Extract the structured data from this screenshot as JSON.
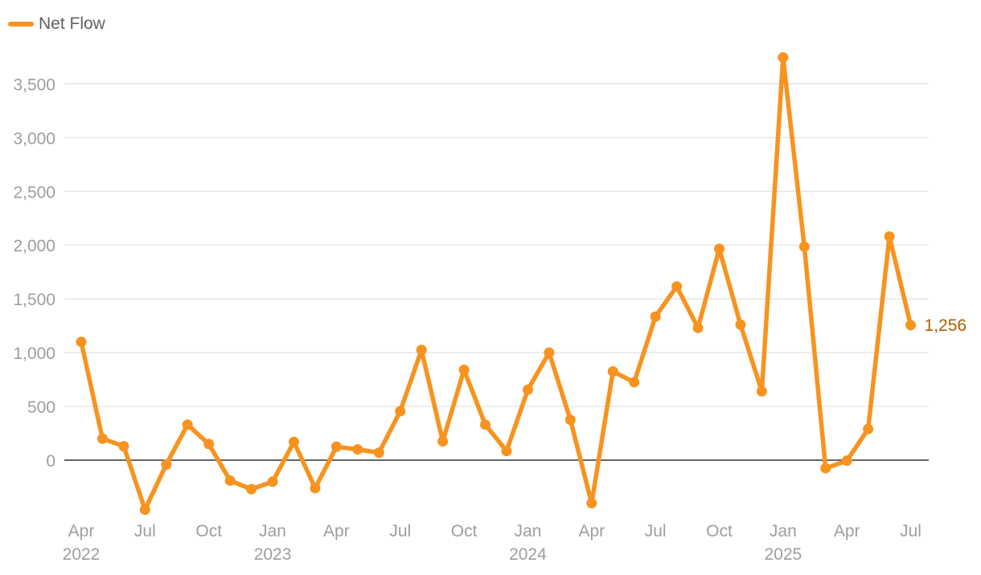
{
  "legend": {
    "label": "Net Flow",
    "color": "#f7931e"
  },
  "chart_data": {
    "type": "line",
    "title": "",
    "xlabel": "",
    "ylabel": "",
    "ylim": [
      -480,
      3800
    ],
    "yticks": [
      0,
      500,
      1000,
      1500,
      2000,
      2500,
      3000,
      3500
    ],
    "ytick_labels": [
      "0",
      "500",
      "1,000",
      "1,500",
      "2,000",
      "2,500",
      "3,000",
      "3,500"
    ],
    "grid": true,
    "legend_position": "top-left",
    "x_ticks": [
      {
        "month": "2022-04",
        "label": "Apr",
        "year": "2022"
      },
      {
        "month": "2022-07",
        "label": "Jul",
        "year": ""
      },
      {
        "month": "2022-10",
        "label": "Oct",
        "year": ""
      },
      {
        "month": "2023-01",
        "label": "Jan",
        "year": "2023"
      },
      {
        "month": "2023-04",
        "label": "Apr",
        "year": ""
      },
      {
        "month": "2023-07",
        "label": "Jul",
        "year": ""
      },
      {
        "month": "2023-10",
        "label": "Oct",
        "year": ""
      },
      {
        "month": "2024-01",
        "label": "Jan",
        "year": "2024"
      },
      {
        "month": "2024-04",
        "label": "Apr",
        "year": ""
      },
      {
        "month": "2024-07",
        "label": "Jul",
        "year": ""
      },
      {
        "month": "2024-10",
        "label": "Oct",
        "year": ""
      },
      {
        "month": "2025-01",
        "label": "Jan",
        "year": "2025"
      },
      {
        "month": "2025-04",
        "label": "Apr",
        "year": ""
      },
      {
        "month": "2025-07",
        "label": "Jul",
        "year": ""
      }
    ],
    "series": [
      {
        "name": "Net Flow",
        "color": "#f7931e",
        "label_color": "#b35c00",
        "end_label": "1,256",
        "x": [
          "2022-04",
          "2022-05",
          "2022-06",
          "2022-07",
          "2022-08",
          "2022-09",
          "2022-10",
          "2022-11",
          "2022-12",
          "2023-01",
          "2023-02",
          "2023-03",
          "2023-04",
          "2023-05",
          "2023-06",
          "2023-07",
          "2023-08",
          "2023-09",
          "2023-10",
          "2023-11",
          "2023-12",
          "2024-01",
          "2024-02",
          "2024-03",
          "2024-04",
          "2024-05",
          "2024-06",
          "2024-07",
          "2024-08",
          "2024-09",
          "2024-10",
          "2024-11",
          "2024-12",
          "2025-01",
          "2025-02",
          "2025-03",
          "2025-04",
          "2025-05",
          "2025-06",
          "2025-07"
        ],
        "values": [
          1100,
          200,
          130,
          -460,
          -40,
          330,
          150,
          -190,
          -270,
          -200,
          170,
          -260,
          125,
          100,
          70,
          455,
          1025,
          175,
          840,
          330,
          85,
          655,
          1000,
          375,
          -400,
          825,
          725,
          1335,
          1615,
          1230,
          1965,
          1260,
          640,
          3745,
          1985,
          -75,
          -5,
          290,
          2080,
          1256
        ]
      }
    ]
  }
}
